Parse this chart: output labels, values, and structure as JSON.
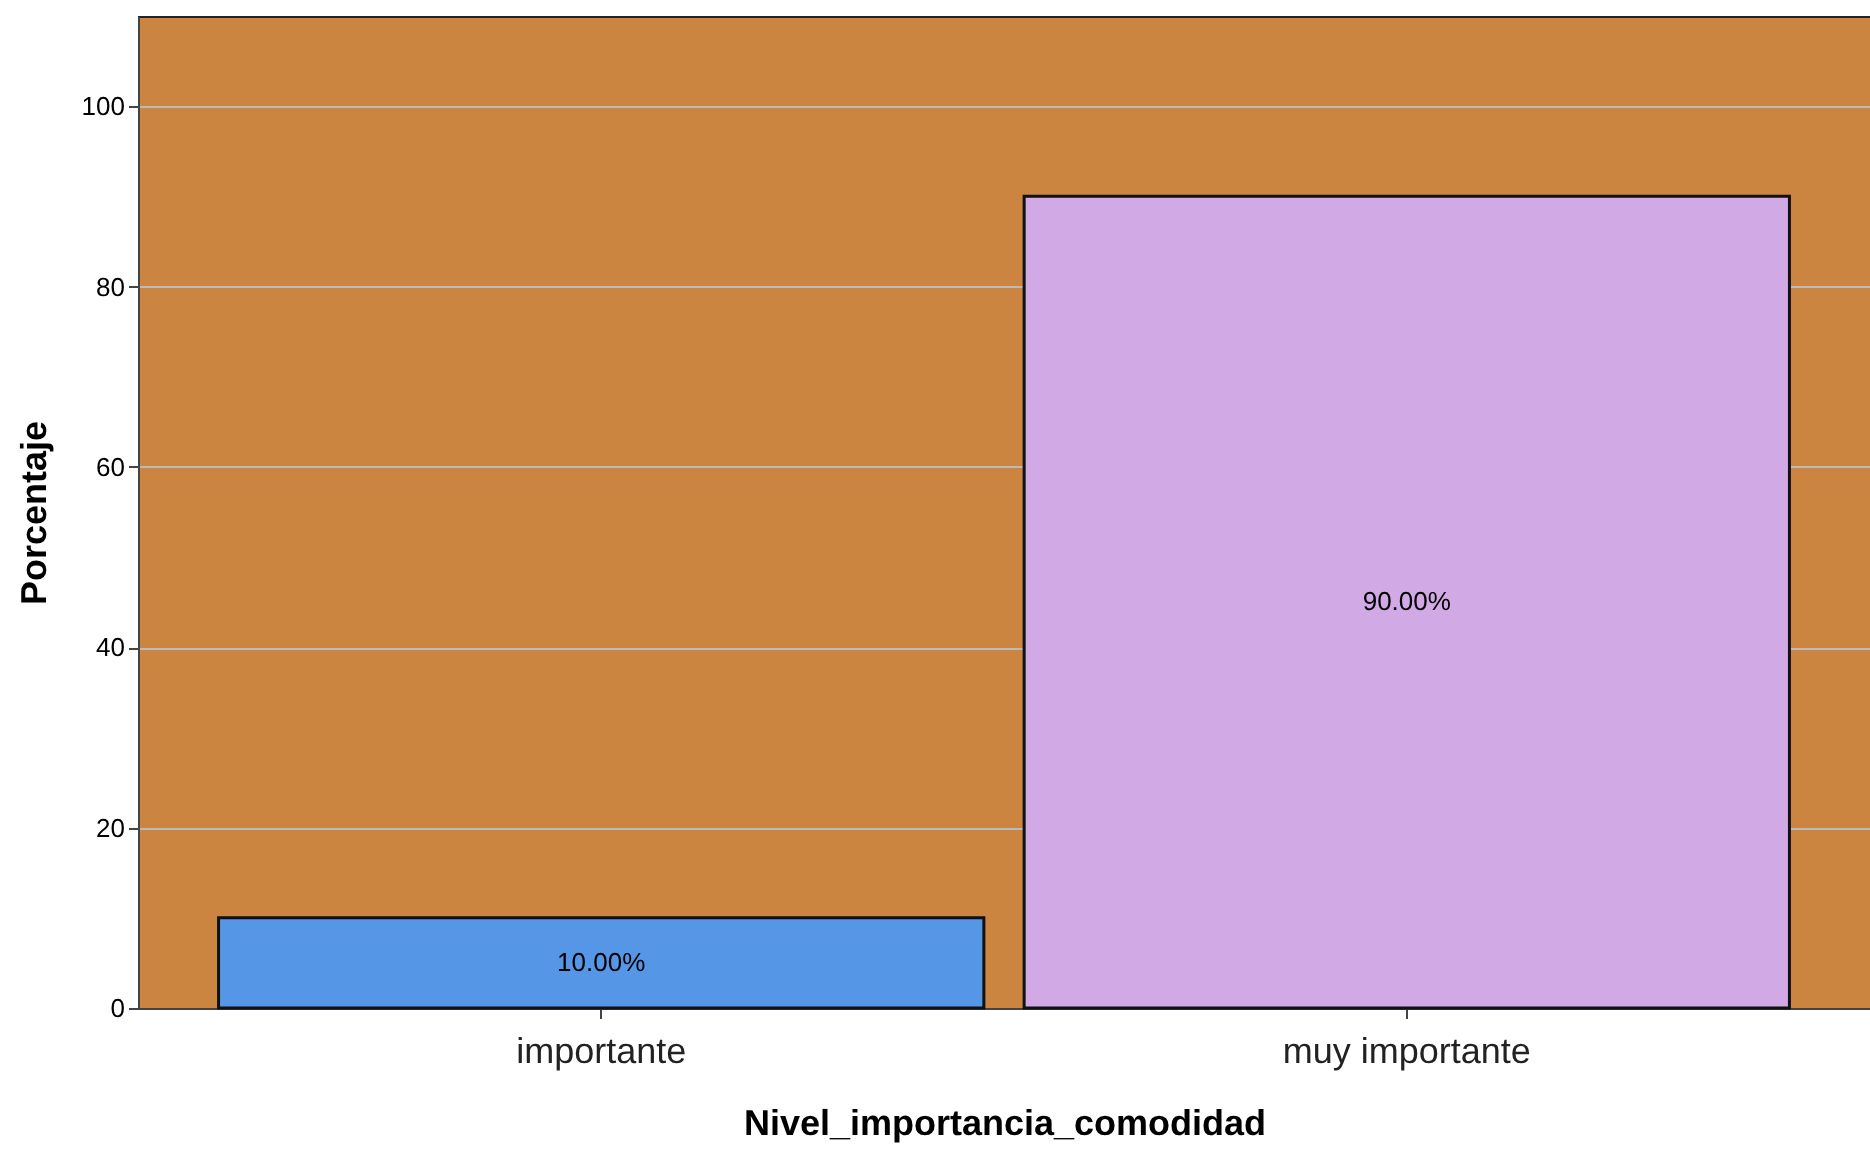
{
  "chart_data": {
    "type": "bar",
    "xlabel": "Nivel_importancia_comodidad",
    "ylabel": "Porcentaje",
    "categories": [
      "importante",
      "muy importante"
    ],
    "values": [
      10,
      90
    ],
    "colors": [
      "#5596e6",
      "#d1a9e5"
    ],
    "value_labels": [
      "10.00%",
      "90.00%"
    ],
    "ylim": [
      0,
      110
    ],
    "yticks": [
      0,
      20,
      40,
      60,
      80,
      100
    ],
    "grid": "y"
  }
}
